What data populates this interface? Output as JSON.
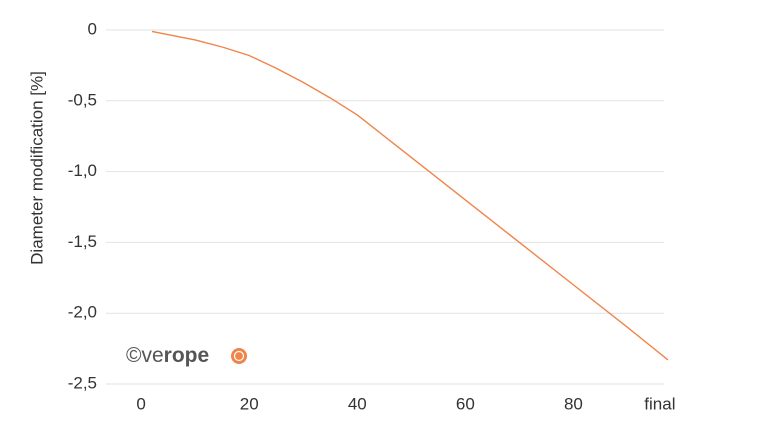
{
  "chart_data": {
    "type": "line",
    "y_label": "Diameter modification [%]",
    "x": [
      2,
      10,
      15,
      20,
      25,
      30,
      35,
      40,
      50,
      60,
      70,
      80,
      90,
      97.5
    ],
    "series": [
      {
        "color": "#f0844a",
        "values": [
          -0.01,
          -0.07,
          -0.12,
          -0.18,
          -0.27,
          -0.37,
          -0.48,
          -0.6,
          -0.9,
          -1.2,
          -1.5,
          -1.8,
          -2.1,
          -2.33
        ]
      }
    ],
    "xlim": [
      -6.5,
      97.5
    ],
    "xticks": [
      0,
      20,
      40,
      60,
      80,
      {
        "value": 96,
        "label": "final"
      }
    ],
    "ylim": [
      -2.5,
      0
    ],
    "yticks": [
      0,
      {
        "value": -0.5,
        "label": "-0,5"
      },
      {
        "value": -1,
        "label": "-1,0"
      },
      {
        "value": -1.5,
        "label": "-1,5"
      },
      {
        "value": -2,
        "label": "-2,0"
      },
      {
        "value": -2.5,
        "label": "-2,5"
      }
    ],
    "grid": true,
    "watermark": {
      "prefix": "©ve",
      "bold": "rope"
    }
  }
}
